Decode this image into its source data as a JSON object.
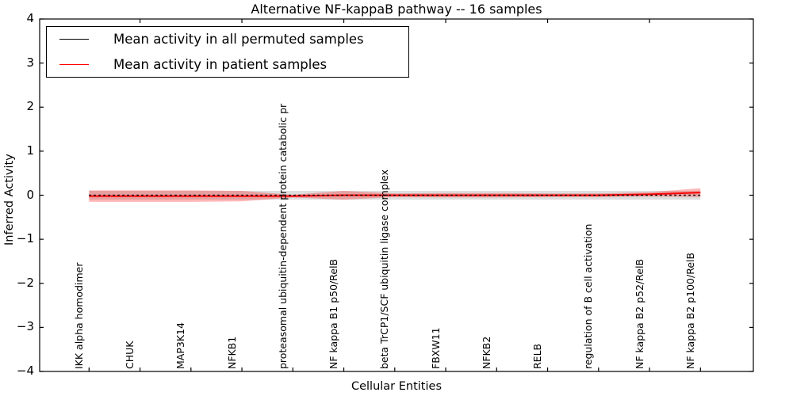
{
  "title": "Alternative NF-kappaB pathway -- 16 samples",
  "legend": {
    "items": [
      {
        "label": "Mean activity in all permuted samples",
        "color": "#000000"
      },
      {
        "label": "Mean activity in patient samples",
        "color": "#ff0000"
      }
    ]
  },
  "chart_data": {
    "type": "line",
    "title": "Alternative NF-kappaB pathway -- 16 samples",
    "xlabel": "Cellular Entities",
    "ylabel": "Inferred Activity",
    "ylim": [
      -4,
      4
    ],
    "yticks": [
      4,
      3,
      2,
      1,
      0,
      -1,
      -2,
      -3,
      -4
    ],
    "ytick_labels": [
      "4",
      "3",
      "2",
      "1",
      "0",
      "−1",
      "−2",
      "−3",
      "−4"
    ],
    "grid": false,
    "legend_position": "upper left",
    "frame_color": "#000000",
    "categories": [
      "IKK alpha homodimer",
      "CHUK",
      "MAP3K14",
      "NFKB1",
      "proteasomal ubiquitin-dependent protein catabolic pr",
      "NF kappa B1 p50/RelB",
      "beta TrCP1/SCF ubiquitin ligase complex",
      "FBXW11",
      "NFKB2",
      "RELB",
      "regulation of B cell activation",
      "NF kappa B2 p52/RelB",
      "NF kappa B2 p100/RelB"
    ],
    "series": [
      {
        "name": "Mean activity in all permuted samples",
        "color": "#000000",
        "style": "dashed",
        "values": [
          0,
          0,
          0,
          0,
          0,
          0,
          0,
          0,
          0,
          0,
          0,
          0,
          0
        ],
        "band_halfwidth": [
          0.1,
          0.1,
          0.1,
          0.1,
          0.1,
          0.1,
          0.1,
          0.1,
          0.1,
          0.1,
          0.1,
          0.1,
          0.1
        ],
        "band_color": "rgba(0,0,0,0.13)"
      },
      {
        "name": "Mean activity in patient samples",
        "color": "#ff0000",
        "style": "solid",
        "values": [
          -0.02,
          -0.02,
          -0.02,
          -0.02,
          -0.02,
          0,
          0,
          0,
          0,
          0,
          0,
          0.02,
          0.06
        ],
        "band_halfwidth": [
          0.13,
          0.13,
          0.13,
          0.12,
          0.03,
          0.1,
          0.04,
          0.05,
          0.05,
          0.04,
          0.04,
          0.05,
          0.1
        ],
        "band_color": "rgba(255,0,0,0.28)"
      }
    ]
  }
}
